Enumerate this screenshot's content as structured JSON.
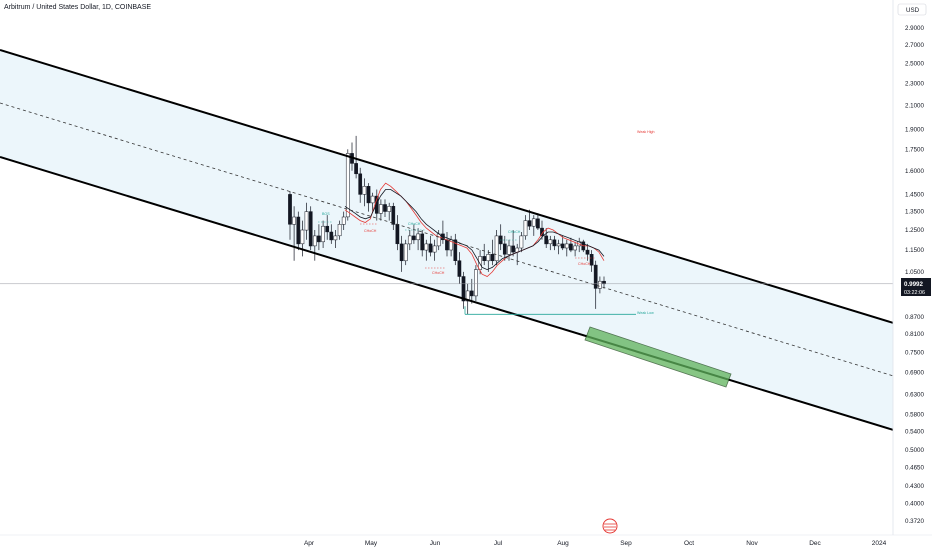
{
  "chart_data": {
    "type": "candlestick",
    "title": "Arbitrum / United States Dollar, 1D, COINBASE",
    "currency": "USD",
    "scale": "log",
    "last_price": 0.9992,
    "last_price_label": "0.9992",
    "countdown": "03:22:06",
    "y_ticks": [
      2.9,
      2.7,
      2.5,
      2.3,
      2.1,
      1.9,
      1.75,
      1.6,
      1.45,
      1.35,
      1.25,
      1.15,
      1.05,
      0.87,
      0.81,
      0.75,
      0.69,
      0.63,
      0.58,
      0.54,
      0.5,
      0.465,
      0.43,
      0.4,
      0.372
    ],
    "y_tick_labels": [
      "2.9000",
      "2.7000",
      "2.5000",
      "2.3000",
      "2.1000",
      "1.9000",
      "1.7500",
      "1.6000",
      "1.4500",
      "1.3500",
      "1.2500",
      "1.1500",
      "1.0500",
      "0.8700",
      "0.8100",
      "0.7500",
      "0.6900",
      "0.6300",
      "0.5800",
      "0.5400",
      "0.5000",
      "0.4650",
      "0.4300",
      "0.4000",
      "0.3720"
    ],
    "x_tick_labels": [
      "Apr",
      "May",
      "Jun",
      "Jul",
      "Aug",
      "Sep",
      "Oct",
      "Nov",
      "Dec",
      "2024"
    ],
    "colors": {
      "up": "#26a69a",
      "down": "#131722",
      "ma_fast": "#e53935",
      "ma_slow": "#131722",
      "channel": "#000000",
      "target": "#5fb35c"
    },
    "annotations": {
      "weak_high": "Weak High",
      "weak_low": "Weak Low",
      "bos": "BOS",
      "choch": "CHoCH"
    },
    "weak_low": 0.88,
    "target_zone": {
      "from": "Aug",
      "to": "Oct",
      "price_top": 0.78,
      "price_bottom": 0.7
    },
    "candles": [
      [
        1.45,
        1.47,
        1.2,
        1.28
      ],
      [
        1.28,
        1.38,
        1.1,
        1.32
      ],
      [
        1.32,
        1.35,
        1.15,
        1.18
      ],
      [
        1.18,
        1.3,
        1.12,
        1.25
      ],
      [
        1.25,
        1.4,
        1.2,
        1.35
      ],
      [
        1.35,
        1.38,
        1.15,
        1.17
      ],
      [
        1.17,
        1.25,
        1.1,
        1.22
      ],
      [
        1.22,
        1.28,
        1.15,
        1.19
      ],
      [
        1.19,
        1.3,
        1.16,
        1.27
      ],
      [
        1.27,
        1.33,
        1.2,
        1.24
      ],
      [
        1.24,
        1.28,
        1.18,
        1.2
      ],
      [
        1.2,
        1.25,
        1.16,
        1.22
      ],
      [
        1.22,
        1.3,
        1.2,
        1.28
      ],
      [
        1.28,
        1.35,
        1.25,
        1.32
      ],
      [
        1.32,
        1.75,
        1.3,
        1.72
      ],
      [
        1.72,
        1.8,
        1.6,
        1.65
      ],
      [
        1.65,
        1.85,
        1.55,
        1.58
      ],
      [
        1.58,
        1.62,
        1.4,
        1.45
      ],
      [
        1.45,
        1.55,
        1.38,
        1.5
      ],
      [
        1.5,
        1.52,
        1.35,
        1.4
      ],
      [
        1.4,
        1.46,
        1.35,
        1.44
      ],
      [
        1.44,
        1.48,
        1.3,
        1.34
      ],
      [
        1.34,
        1.42,
        1.3,
        1.39
      ],
      [
        1.39,
        1.42,
        1.32,
        1.35
      ],
      [
        1.35,
        1.4,
        1.3,
        1.38
      ],
      [
        1.38,
        1.4,
        1.25,
        1.28
      ],
      [
        1.28,
        1.33,
        1.15,
        1.18
      ],
      [
        1.18,
        1.22,
        1.05,
        1.1
      ],
      [
        1.1,
        1.2,
        1.08,
        1.18
      ],
      [
        1.18,
        1.25,
        1.15,
        1.22
      ],
      [
        1.22,
        1.28,
        1.18,
        1.2
      ],
      [
        1.2,
        1.26,
        1.15,
        1.23
      ],
      [
        1.23,
        1.25,
        1.12,
        1.15
      ],
      [
        1.15,
        1.2,
        1.1,
        1.18
      ],
      [
        1.18,
        1.22,
        1.12,
        1.14
      ],
      [
        1.14,
        1.2,
        1.1,
        1.17
      ],
      [
        1.17,
        1.25,
        1.15,
        1.23
      ],
      [
        1.23,
        1.3,
        1.18,
        1.2
      ],
      [
        1.2,
        1.24,
        1.12,
        1.15
      ],
      [
        1.15,
        1.22,
        1.12,
        1.2
      ],
      [
        1.2,
        1.23,
        1.08,
        1.1
      ],
      [
        1.1,
        1.14,
        1.0,
        1.03
      ],
      [
        1.03,
        1.05,
        0.9,
        0.93
      ],
      [
        0.93,
        1.0,
        0.88,
        0.97
      ],
      [
        0.97,
        1.02,
        0.92,
        0.95
      ],
      [
        0.95,
        1.08,
        0.93,
        1.06
      ],
      [
        1.06,
        1.15,
        1.04,
        1.12
      ],
      [
        1.12,
        1.18,
        1.08,
        1.1
      ],
      [
        1.1,
        1.15,
        1.05,
        1.13
      ],
      [
        1.13,
        1.2,
        1.08,
        1.1
      ],
      [
        1.1,
        1.25,
        1.08,
        1.22
      ],
      [
        1.22,
        1.28,
        1.15,
        1.18
      ],
      [
        1.18,
        1.22,
        1.1,
        1.13
      ],
      [
        1.13,
        1.2,
        1.1,
        1.17
      ],
      [
        1.17,
        1.25,
        1.12,
        1.14
      ],
      [
        1.14,
        1.18,
        1.08,
        1.16
      ],
      [
        1.16,
        1.24,
        1.14,
        1.22
      ],
      [
        1.22,
        1.33,
        1.2,
        1.3
      ],
      [
        1.3,
        1.36,
        1.25,
        1.27
      ],
      [
        1.27,
        1.33,
        1.22,
        1.31
      ],
      [
        1.31,
        1.34,
        1.25,
        1.26
      ],
      [
        1.26,
        1.3,
        1.2,
        1.22
      ],
      [
        1.22,
        1.26,
        1.16,
        1.18
      ],
      [
        1.18,
        1.22,
        1.15,
        1.2
      ],
      [
        1.2,
        1.22,
        1.15,
        1.17
      ],
      [
        1.17,
        1.2,
        1.13,
        1.18
      ],
      [
        1.18,
        1.22,
        1.15,
        1.16
      ],
      [
        1.16,
        1.2,
        1.12,
        1.18
      ],
      [
        1.18,
        1.21,
        1.14,
        1.15
      ],
      [
        1.15,
        1.19,
        1.12,
        1.17
      ],
      [
        1.17,
        1.21,
        1.14,
        1.19
      ],
      [
        1.19,
        1.2,
        1.14,
        1.15
      ],
      [
        1.15,
        1.18,
        1.1,
        1.13
      ],
      [
        1.13,
        1.15,
        1.05,
        1.08
      ],
      [
        1.08,
        1.1,
        0.9,
        0.98
      ],
      [
        0.98,
        1.03,
        0.96,
        1.01
      ],
      [
        1.01,
        1.03,
        0.98,
        0.9992
      ]
    ],
    "ma_fast": [
      1.36,
      1.34,
      1.32,
      1.3,
      1.29,
      1.31,
      1.4,
      1.48,
      1.52,
      1.5,
      1.47,
      1.44,
      1.41,
      1.37,
      1.33,
      1.29,
      1.26,
      1.24,
      1.22,
      1.21,
      1.2,
      1.19,
      1.18,
      1.17,
      1.16,
      1.13,
      1.08,
      1.04,
      1.03,
      1.05,
      1.08,
      1.1,
      1.12,
      1.13,
      1.14,
      1.15,
      1.16,
      1.17,
      1.2,
      1.24,
      1.26,
      1.25,
      1.23,
      1.21,
      1.2,
      1.19,
      1.18,
      1.17,
      1.17,
      1.16,
      1.14,
      1.1
    ],
    "ma_slow": [
      1.38,
      1.36,
      1.34,
      1.32,
      1.31,
      1.32,
      1.38,
      1.44,
      1.48,
      1.48,
      1.46,
      1.44,
      1.41,
      1.38,
      1.35,
      1.31,
      1.28,
      1.26,
      1.24,
      1.22,
      1.21,
      1.2,
      1.19,
      1.18,
      1.17,
      1.15,
      1.11,
      1.07,
      1.06,
      1.07,
      1.09,
      1.11,
      1.12,
      1.13,
      1.14,
      1.15,
      1.16,
      1.17,
      1.19,
      1.22,
      1.24,
      1.24,
      1.23,
      1.22,
      1.21,
      1.2,
      1.19,
      1.18,
      1.17,
      1.16,
      1.15,
      1.12
    ]
  }
}
